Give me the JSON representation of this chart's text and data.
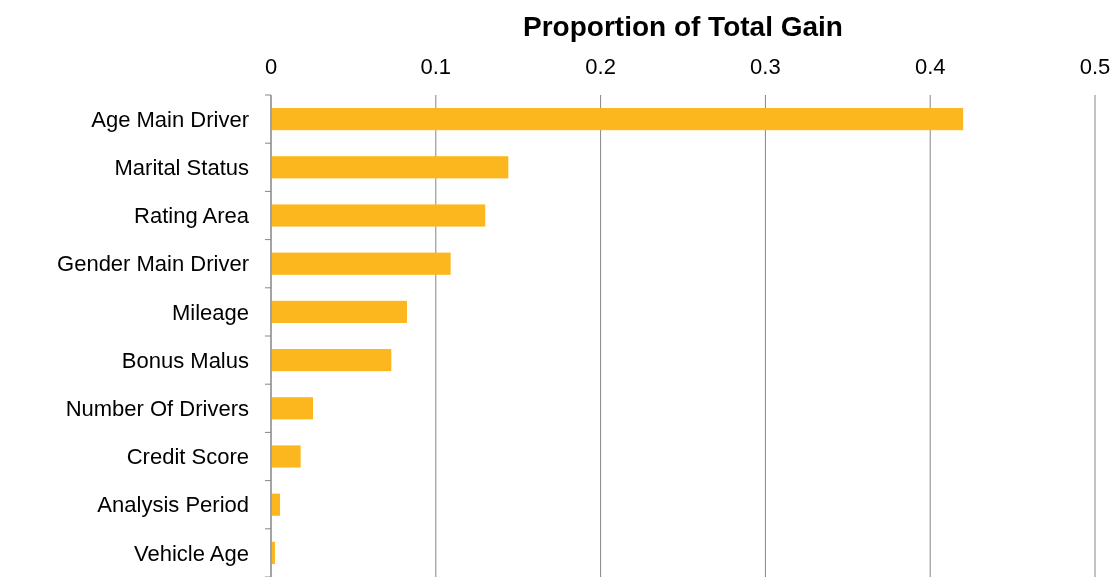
{
  "chart_data": {
    "type": "bar",
    "orientation": "horizontal",
    "xlabel": "Proportion of Total Gain",
    "categories": [
      "Age Main Driver",
      "Marital Status",
      "Rating Area",
      "Gender Main Driver",
      "Mileage",
      "Bonus Malus",
      "Number Of Drivers",
      "Credit Score",
      "Analysis Period",
      "Vehicle Age"
    ],
    "values": [
      0.42,
      0.144,
      0.13,
      0.109,
      0.0825,
      0.073,
      0.0255,
      0.018,
      0.0055,
      0.0024
    ],
    "color": "#fdb71e",
    "xlim": [
      0,
      0.5
    ],
    "xticks": [
      0,
      0.1,
      0.2,
      0.3,
      0.4,
      0.5
    ],
    "grid": "x"
  }
}
